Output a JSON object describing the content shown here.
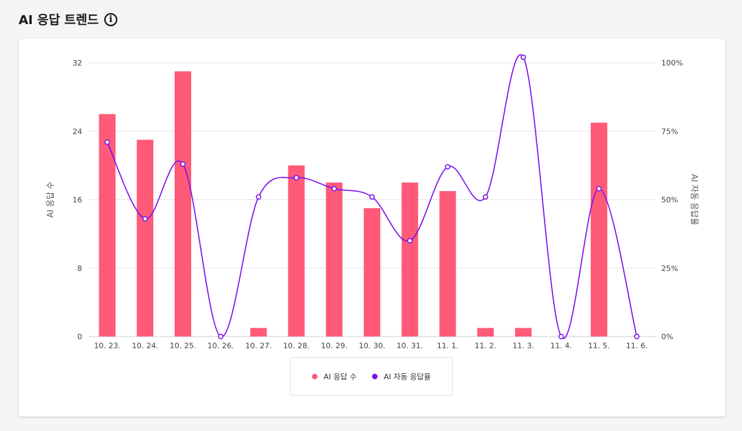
{
  "header": {
    "title": "AI 응답 트렌드",
    "info_icon": "info-icon"
  },
  "colors": {
    "bar": "#ff5a78",
    "line": "#7b10f0",
    "grid": "#e6e6e6",
    "axis_text": "#444444"
  },
  "chart_data": {
    "type": "bar+line",
    "categories": [
      "10. 23.",
      "10. 24.",
      "10. 25.",
      "10. 26.",
      "10. 27.",
      "10. 28.",
      "10. 29.",
      "10. 30.",
      "10. 31.",
      "11. 1.",
      "11. 2.",
      "11. 3.",
      "11. 4.",
      "11. 5.",
      "11. 6."
    ],
    "series": [
      {
        "name": "AI 응답 수",
        "type": "bar",
        "axis": "left",
        "values": [
          26,
          23,
          31,
          0,
          1,
          20,
          18,
          15,
          18,
          17,
          1,
          1,
          0,
          25,
          0
        ]
      },
      {
        "name": "AI 자동 응답율",
        "type": "line",
        "axis": "right",
        "values": [
          71,
          43,
          63,
          0,
          51,
          58,
          54,
          51,
          35,
          62,
          51,
          102,
          0,
          54,
          0
        ]
      }
    ],
    "y_left": {
      "label": "AI 응답 수",
      "min": 0,
      "max": 32,
      "ticks": [
        0,
        8,
        16,
        24,
        32
      ],
      "tick_labels": [
        "0",
        "8",
        "16",
        "24",
        "32"
      ]
    },
    "y_right": {
      "label": "AI 자동 응답율",
      "min": 0,
      "max": 100,
      "ticks": [
        0,
        25,
        50,
        75,
        100
      ],
      "tick_labels": [
        "0%",
        "25%",
        "50%",
        "75%",
        "100%"
      ]
    },
    "grid": true,
    "legend_position": "bottom-center"
  },
  "legend": {
    "items": [
      "AI 응답 수",
      "AI 자동 응답율"
    ]
  }
}
